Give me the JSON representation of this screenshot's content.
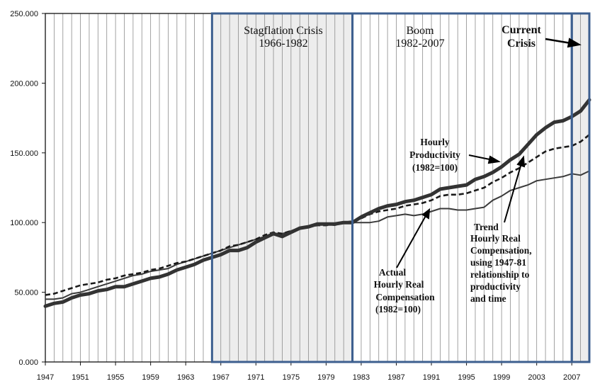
{
  "chart_data": {
    "type": "line",
    "title": "",
    "xlabel": "",
    "ylabel": "",
    "xlim": [
      1947,
      2009
    ],
    "ylim": [
      0,
      250
    ],
    "yticks": [
      0,
      50,
      100,
      150,
      200,
      250
    ],
    "ytick_labels": [
      "0.000",
      "50.000",
      "100.000",
      "150.000",
      "200.000",
      "250.000"
    ],
    "xticks": [
      1947,
      1951,
      1955,
      1959,
      1963,
      1967,
      1971,
      1975,
      1979,
      1983,
      1987,
      1991,
      1995,
      1999,
      2003,
      2007
    ],
    "xtick_labels": [
      "1947",
      "1951",
      "1955",
      "1959",
      "1963",
      "1967",
      "1971",
      "1975",
      "1979",
      "1983",
      "1987",
      "1991",
      "1995",
      "1999",
      "2003",
      "2007"
    ],
    "grid": "vertical lines every year",
    "periods": [
      {
        "name": "Stagflation Crisis",
        "years": "1966-1982",
        "start": 1966,
        "end": 1982,
        "shaded": true
      },
      {
        "name": "Boom",
        "years": "1982-2007",
        "start": 1982,
        "end": 2007,
        "shaded": false
      },
      {
        "name": "Current",
        "name2": "Crisis",
        "start": 2007,
        "end": 2009,
        "shaded": true
      }
    ],
    "x": [
      1947,
      1948,
      1949,
      1950,
      1951,
      1952,
      1953,
      1954,
      1955,
      1956,
      1957,
      1958,
      1959,
      1960,
      1961,
      1962,
      1963,
      1964,
      1965,
      1966,
      1967,
      1968,
      1969,
      1970,
      1971,
      1972,
      1973,
      1974,
      1975,
      1976,
      1977,
      1978,
      1979,
      1980,
      1981,
      1982,
      1983,
      1984,
      1985,
      1986,
      1987,
      1988,
      1989,
      1990,
      1991,
      1992,
      1993,
      1994,
      1995,
      1996,
      1997,
      1998,
      1999,
      2000,
      2001,
      2002,
      2003,
      2004,
      2005,
      2006,
      2007,
      2008,
      2009
    ],
    "series": [
      {
        "name": "Hourly Productivity (1982=100)",
        "style": "thick",
        "values": [
          40,
          42,
          43,
          46,
          48,
          49,
          51,
          52,
          54,
          54,
          56,
          58,
          60,
          61,
          63,
          66,
          68,
          70,
          73,
          75,
          77,
          80,
          80,
          82,
          86,
          89,
          92,
          90,
          93,
          96,
          97,
          99,
          99,
          99,
          100,
          100,
          104,
          107,
          110,
          112,
          113,
          115,
          116,
          118,
          120,
          124,
          125,
          126,
          127,
          131,
          133,
          136,
          140,
          145,
          149,
          156,
          163,
          168,
          172,
          173,
          176,
          180,
          188
        ]
      },
      {
        "name": "Actual Hourly Real Compensation (1982=100)",
        "style": "thin",
        "values": [
          45,
          45,
          46,
          49,
          50,
          52,
          54,
          56,
          58,
          60,
          62,
          63,
          65,
          66,
          67,
          70,
          72,
          74,
          76,
          78,
          80,
          82,
          84,
          86,
          88,
          90,
          92,
          92,
          94,
          96,
          97,
          99,
          99,
          98,
          100,
          100,
          100,
          100,
          101,
          104,
          105,
          106,
          105,
          106,
          108,
          110,
          110,
          109,
          109,
          110,
          111,
          116,
          119,
          123,
          125,
          127,
          130,
          131,
          132,
          133,
          135,
          134,
          137
        ]
      },
      {
        "name": "Trend Hourly Real Compensation, using 1947-81 relationship to productivity and time",
        "style": "dashed",
        "values": [
          48,
          49,
          51,
          53,
          55,
          56,
          57,
          59,
          60,
          62,
          63,
          64,
          66,
          67,
          69,
          71,
          72,
          74,
          76,
          78,
          80,
          83,
          84,
          86,
          88,
          91,
          93,
          92,
          94,
          96,
          97,
          98,
          98,
          99,
          100,
          101,
          103,
          106,
          108,
          109,
          110,
          112,
          113,
          114,
          116,
          119,
          120,
          120,
          121,
          123,
          125,
          129,
          132,
          136,
          139,
          143,
          147,
          151,
          153,
          154,
          155,
          158,
          163
        ]
      }
    ],
    "annotations": {
      "productivity": [
        "Hourly",
        "Productivity",
        "(1982=100)"
      ],
      "actual": [
        "Actual",
        "Hourly Real",
        "Compensation",
        "(1982=100)"
      ],
      "trend": [
        "Trend",
        "Hourly Real",
        "Compensation,",
        "using 1947-81",
        "relationship to",
        "productivity",
        "and time"
      ]
    }
  }
}
